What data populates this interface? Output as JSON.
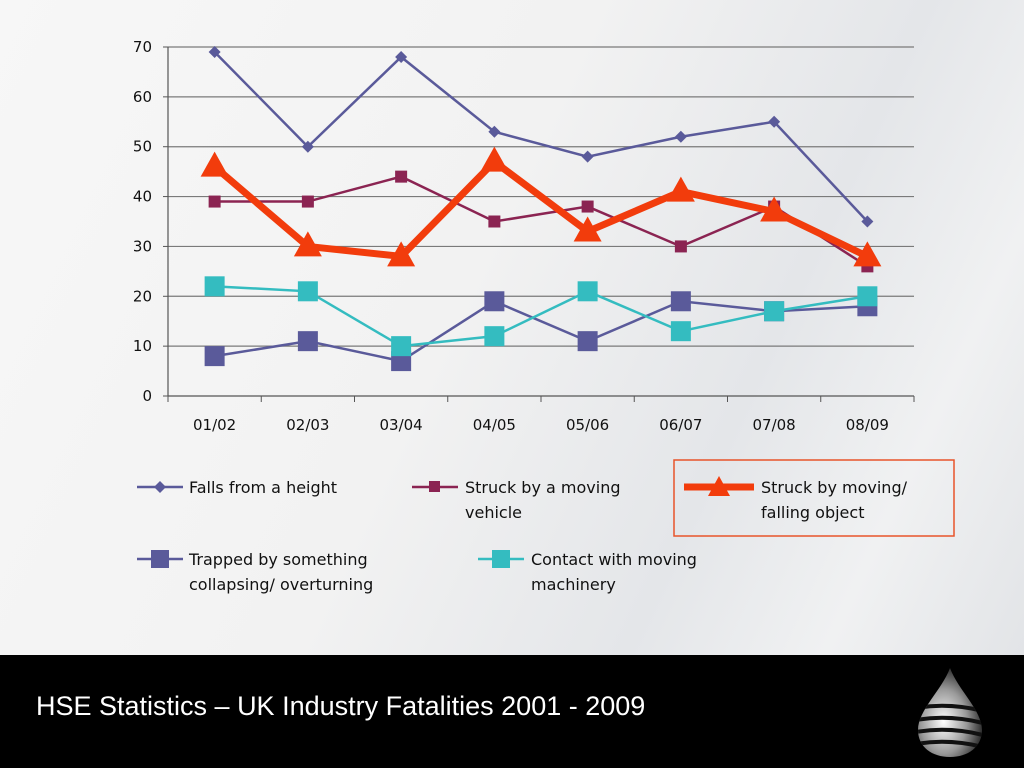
{
  "footer": {
    "title": "HSE Statistics – UK Industry Fatalities 2001 - 2009"
  },
  "legend": {
    "items": [
      {
        "lines": [
          "Falls from a height"
        ]
      },
      {
        "lines": [
          "Struck by a moving",
          "vehicle"
        ]
      },
      {
        "lines": [
          "Struck by moving/",
          "falling object"
        ]
      },
      {
        "lines": [
          "Trapped by something",
          "collapsing/ overturning"
        ]
      },
      {
        "lines": [
          "Contact with moving",
          "machinery"
        ]
      }
    ],
    "highlight_color": "#e8542a"
  },
  "chart_data": {
    "type": "line",
    "title": "",
    "xlabel": "",
    "ylabel": "",
    "categories": [
      "01/02",
      "02/03",
      "03/04",
      "04/05",
      "05/06",
      "06/07",
      "07/08",
      "08/09"
    ],
    "ylim": [
      0,
      70
    ],
    "yticks": [
      0,
      10,
      20,
      30,
      40,
      50,
      60,
      70
    ],
    "grid": true,
    "series": [
      {
        "name": "Falls from a height",
        "values": [
          69,
          50,
          68,
          53,
          48,
          52,
          55,
          35
        ],
        "color": "#5a5a9a",
        "marker": "diamond",
        "emphasis": false
      },
      {
        "name": "Struck by a moving vehicle",
        "values": [
          39,
          39,
          44,
          35,
          38,
          30,
          38,
          26
        ],
        "color": "#8b2452",
        "marker": "square-small",
        "emphasis": false
      },
      {
        "name": "Trapped by something collapsing/ overturning",
        "values": [
          8,
          11,
          7,
          19,
          11,
          19,
          17,
          18
        ],
        "color": "#5a5a9a",
        "marker": "square",
        "emphasis": false
      },
      {
        "name": "Contact with moving machinery",
        "values": [
          22,
          21,
          10,
          12,
          21,
          13,
          17,
          20
        ],
        "color": "#34bcc0",
        "marker": "square",
        "emphasis": false
      },
      {
        "name": "Struck by moving/ falling object",
        "values": [
          46,
          30,
          28,
          47,
          33,
          41,
          37,
          28
        ],
        "color": "#f23c0c",
        "marker": "triangle",
        "emphasis": true
      }
    ]
  }
}
